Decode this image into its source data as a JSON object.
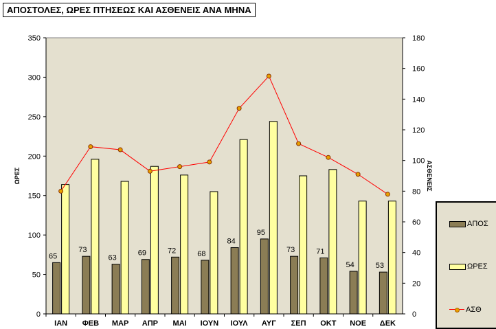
{
  "chart_data": {
    "type": "bar",
    "title": "ΑΠΟΣΤΟΛΕΣ, ΩΡΕΣ ΠΤΗΣΕΩΣ ΚΑΙ ΑΣΘΕΝΕΙΣ ΑΝΑ ΜΗΝΑ",
    "categories": [
      "ΙΑΝ",
      "ΦΕΒ",
      "ΜΑΡ",
      "ΑΠΡ",
      "ΜΑΙ",
      "ΙΟΥΝ",
      "ΙΟΥΛ",
      "ΑΥΓ",
      "ΣΕΠ",
      "ΟΚΤ",
      "ΝΟΕ",
      "ΔΕΚ"
    ],
    "ylabel": "ΩΡΕΣ",
    "y2label": "ΑΣΘΕΝΕΙΣ",
    "ylim": [
      0,
      350
    ],
    "y2lim": [
      0,
      180
    ],
    "yticks": [
      "0",
      "50",
      "100",
      "150",
      "200",
      "250",
      "300",
      "350"
    ],
    "y2ticks": [
      "0",
      "20",
      "40",
      "60",
      "80",
      "100",
      "120",
      "140",
      "160",
      "180"
    ],
    "legend_position": "right",
    "plot_background": "#e4e0cf",
    "series": [
      {
        "name": "ΑΠΟΣ",
        "kind": "bar",
        "axis": "left",
        "color": "#8b7d55",
        "show_labels": true,
        "values": [
          65,
          73,
          63,
          69,
          72,
          68,
          84,
          95,
          73,
          71,
          54,
          53
        ]
      },
      {
        "name": "ΩΡΕΣ",
        "kind": "bar",
        "axis": "left",
        "color": "#ffffa0",
        "show_labels": false,
        "values": [
          164,
          196,
          168,
          187,
          176,
          155,
          221,
          244,
          175,
          183,
          143,
          143
        ]
      },
      {
        "name": "ΑΣΘ",
        "kind": "line",
        "axis": "right",
        "color": "#ff0000",
        "marker_color": "#e8a000",
        "values": [
          80,
          109,
          107,
          93,
          96,
          99,
          134,
          155,
          111,
          102,
          91,
          78
        ]
      }
    ]
  }
}
